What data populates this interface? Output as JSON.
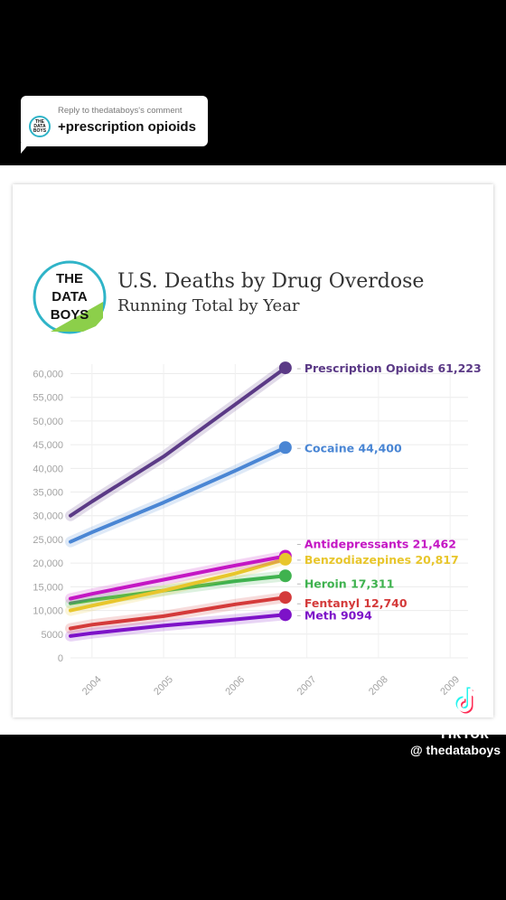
{
  "reply": {
    "label": "Reply to thedataboys's comment",
    "text": "+prescription opioids",
    "avatar_text": "THE DATA BOYS"
  },
  "logo": {
    "line1": "THE",
    "line2": "DATA",
    "line3": "BOYS"
  },
  "watermark": {
    "app": "TikTok",
    "handle": "@ thedataboys"
  },
  "colors": {
    "prescription": "#5b3a86",
    "cocaine": "#4a86d4",
    "antidepressants": "#c416c4",
    "benzodiazepines": "#e8c62c",
    "heroin": "#3fb24f",
    "fentanyl": "#d43a3a",
    "meth": "#7d12c8"
  },
  "chart_data": {
    "type": "line",
    "title": "U.S. Deaths by Drug Overdose",
    "subtitle": "Running Total by Year",
    "xlabel": "",
    "ylabel": "",
    "x_ticks": [
      "2004",
      "2005",
      "2006",
      "2007",
      "2008",
      "2009"
    ],
    "y_ticks": [
      "60,000",
      "55,000",
      "50,000",
      "45,000",
      "40,000",
      "35,000",
      "30,000",
      "25,000",
      "20,000",
      "15,000",
      "10,000",
      "5000",
      "0"
    ],
    "ylim": [
      0,
      62000
    ],
    "xlim": [
      2003.7,
      2009.25
    ],
    "grid": true,
    "series": [
      {
        "key": "prescription",
        "name": "Prescription Opioids",
        "label_value": "61,223",
        "x": [
          2003.7,
          2004.0,
          2005.0,
          2006.0,
          2006.7
        ],
        "y": [
          30000,
          33000,
          42500,
          53500,
          61223
        ]
      },
      {
        "key": "cocaine",
        "name": "Cocaine",
        "label_value": "44,400",
        "x": [
          2003.7,
          2004.0,
          2005.0,
          2006.0,
          2006.7
        ],
        "y": [
          24500,
          26500,
          32800,
          39500,
          44400
        ]
      },
      {
        "key": "antidepressants",
        "name": "Antidepressants",
        "label_value": "21,462",
        "x": [
          2003.7,
          2004.0,
          2005.0,
          2006.0,
          2006.7
        ],
        "y": [
          12500,
          13500,
          16500,
          19500,
          21462
        ]
      },
      {
        "key": "benzodiazepines",
        "name": "Benzodiazepines",
        "label_value": "20,817",
        "x": [
          2003.7,
          2004.0,
          2005.0,
          2006.0,
          2006.7
        ],
        "y": [
          10000,
          11000,
          14200,
          17800,
          20817
        ]
      },
      {
        "key": "heroin",
        "name": "Heroin",
        "label_value": "17,311",
        "x": [
          2003.7,
          2004.0,
          2005.0,
          2006.0,
          2006.7
        ],
        "y": [
          11500,
          12200,
          14200,
          16200,
          17311
        ]
      },
      {
        "key": "fentanyl",
        "name": "Fentanyl",
        "label_value": "12,740",
        "x": [
          2003.7,
          2004.0,
          2005.0,
          2006.0,
          2006.7
        ],
        "y": [
          6200,
          7000,
          8800,
          11300,
          12740
        ]
      },
      {
        "key": "meth",
        "name": "Meth",
        "label_value": "9094",
        "x": [
          2003.7,
          2004.0,
          2005.0,
          2006.0,
          2006.7
        ],
        "y": [
          4600,
          5200,
          6800,
          8100,
          9094
        ]
      }
    ]
  }
}
